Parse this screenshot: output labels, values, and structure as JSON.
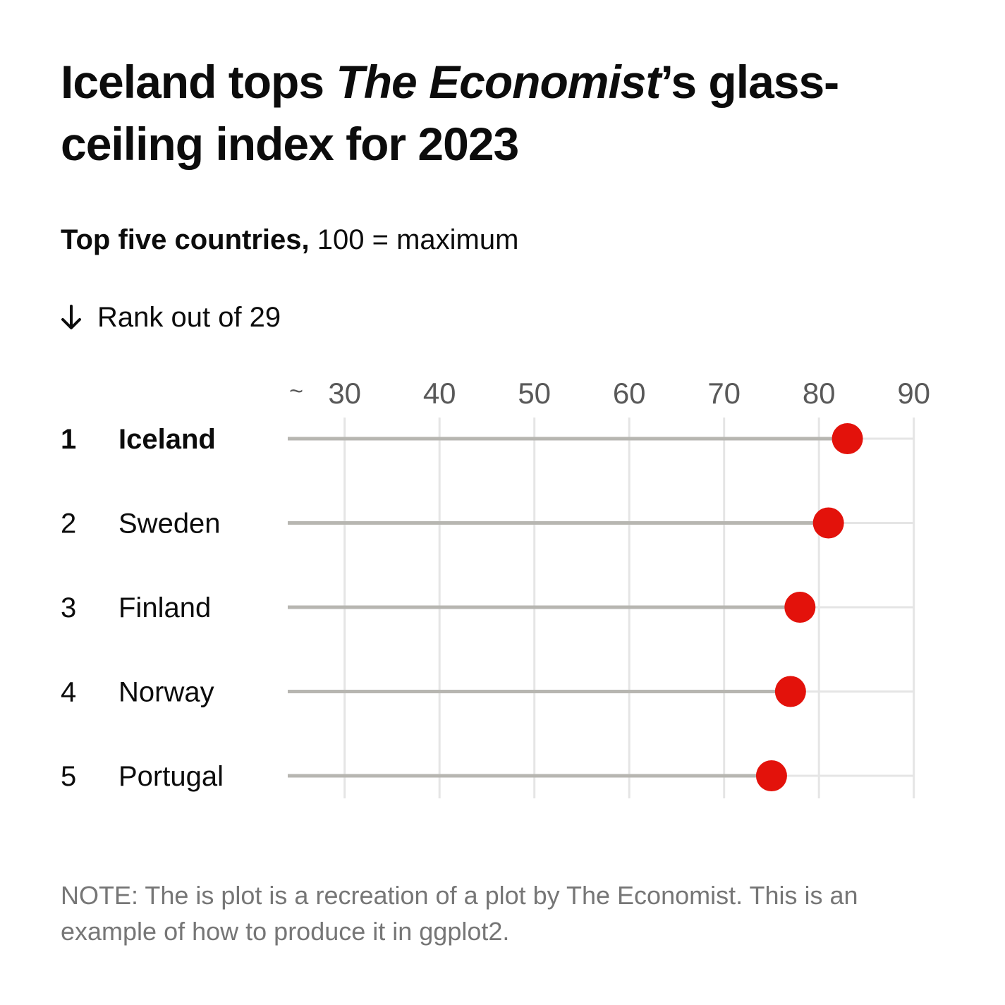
{
  "title": {
    "part1": "Iceland tops ",
    "italic": "The Economist",
    "part2": "’s glass-ceiling index for 2023"
  },
  "subtitle": {
    "bold": "Top five countries,",
    "rest": " 100 = maximum"
  },
  "rank_note": "Rank out of 29",
  "note": "NOTE: The is plot is a recreation of a plot by The Economist. This is an example of how to produce it in ggplot2.",
  "colors": {
    "point": "#e3120b",
    "stem": "#b7b6b1",
    "grid": "#e5e5e5",
    "tick_text": "#595959",
    "text": "#0c0c0c"
  },
  "chart_data": {
    "type": "lollipop",
    "title": "Iceland tops The Economist’s glass-ceiling index for 2023",
    "axis_break_label": "~",
    "x_ticks": [
      30,
      40,
      50,
      60,
      70,
      80,
      90
    ],
    "xlim": [
      24,
      90
    ],
    "ranks": [
      "1",
      "2",
      "3",
      "4",
      "5"
    ],
    "countries": [
      "Iceland",
      "Sweden",
      "Finland",
      "Norway",
      "Portugal"
    ],
    "values": [
      83,
      81,
      78,
      77,
      75
    ],
    "highlight": "Iceland"
  }
}
